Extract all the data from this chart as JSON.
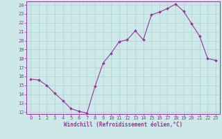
{
  "x": [
    0,
    1,
    2,
    3,
    4,
    5,
    6,
    7,
    8,
    9,
    10,
    11,
    12,
    13,
    14,
    15,
    16,
    17,
    18,
    19,
    20,
    21,
    22,
    23
  ],
  "y": [
    15.7,
    15.6,
    15.0,
    14.1,
    13.3,
    12.4,
    12.1,
    11.9,
    14.9,
    17.5,
    18.6,
    19.9,
    20.1,
    21.1,
    20.1,
    22.9,
    23.2,
    23.6,
    24.1,
    23.3,
    21.9,
    20.5,
    18.0,
    17.8
  ],
  "line_color": "#993399",
  "marker": "D",
  "marker_size": 2.0,
  "bg_color": "#cce8e8",
  "grid_color": "#aacccc",
  "xlabel": "Windchill (Refroidissement éolien,°C)",
  "xlabel_color": "#993399",
  "tick_color": "#993399",
  "spine_color": "#993399",
  "ylim": [
    12,
    24
  ],
  "xlim": [
    0,
    23
  ],
  "yticks": [
    12,
    13,
    14,
    15,
    16,
    17,
    18,
    19,
    20,
    21,
    22,
    23,
    24
  ],
  "xticks": [
    0,
    1,
    2,
    3,
    4,
    5,
    6,
    7,
    8,
    9,
    10,
    11,
    12,
    13,
    14,
    15,
    16,
    17,
    18,
    19,
    20,
    21,
    22,
    23
  ],
  "tick_fontsize": 5.0,
  "xlabel_fontsize": 5.5
}
